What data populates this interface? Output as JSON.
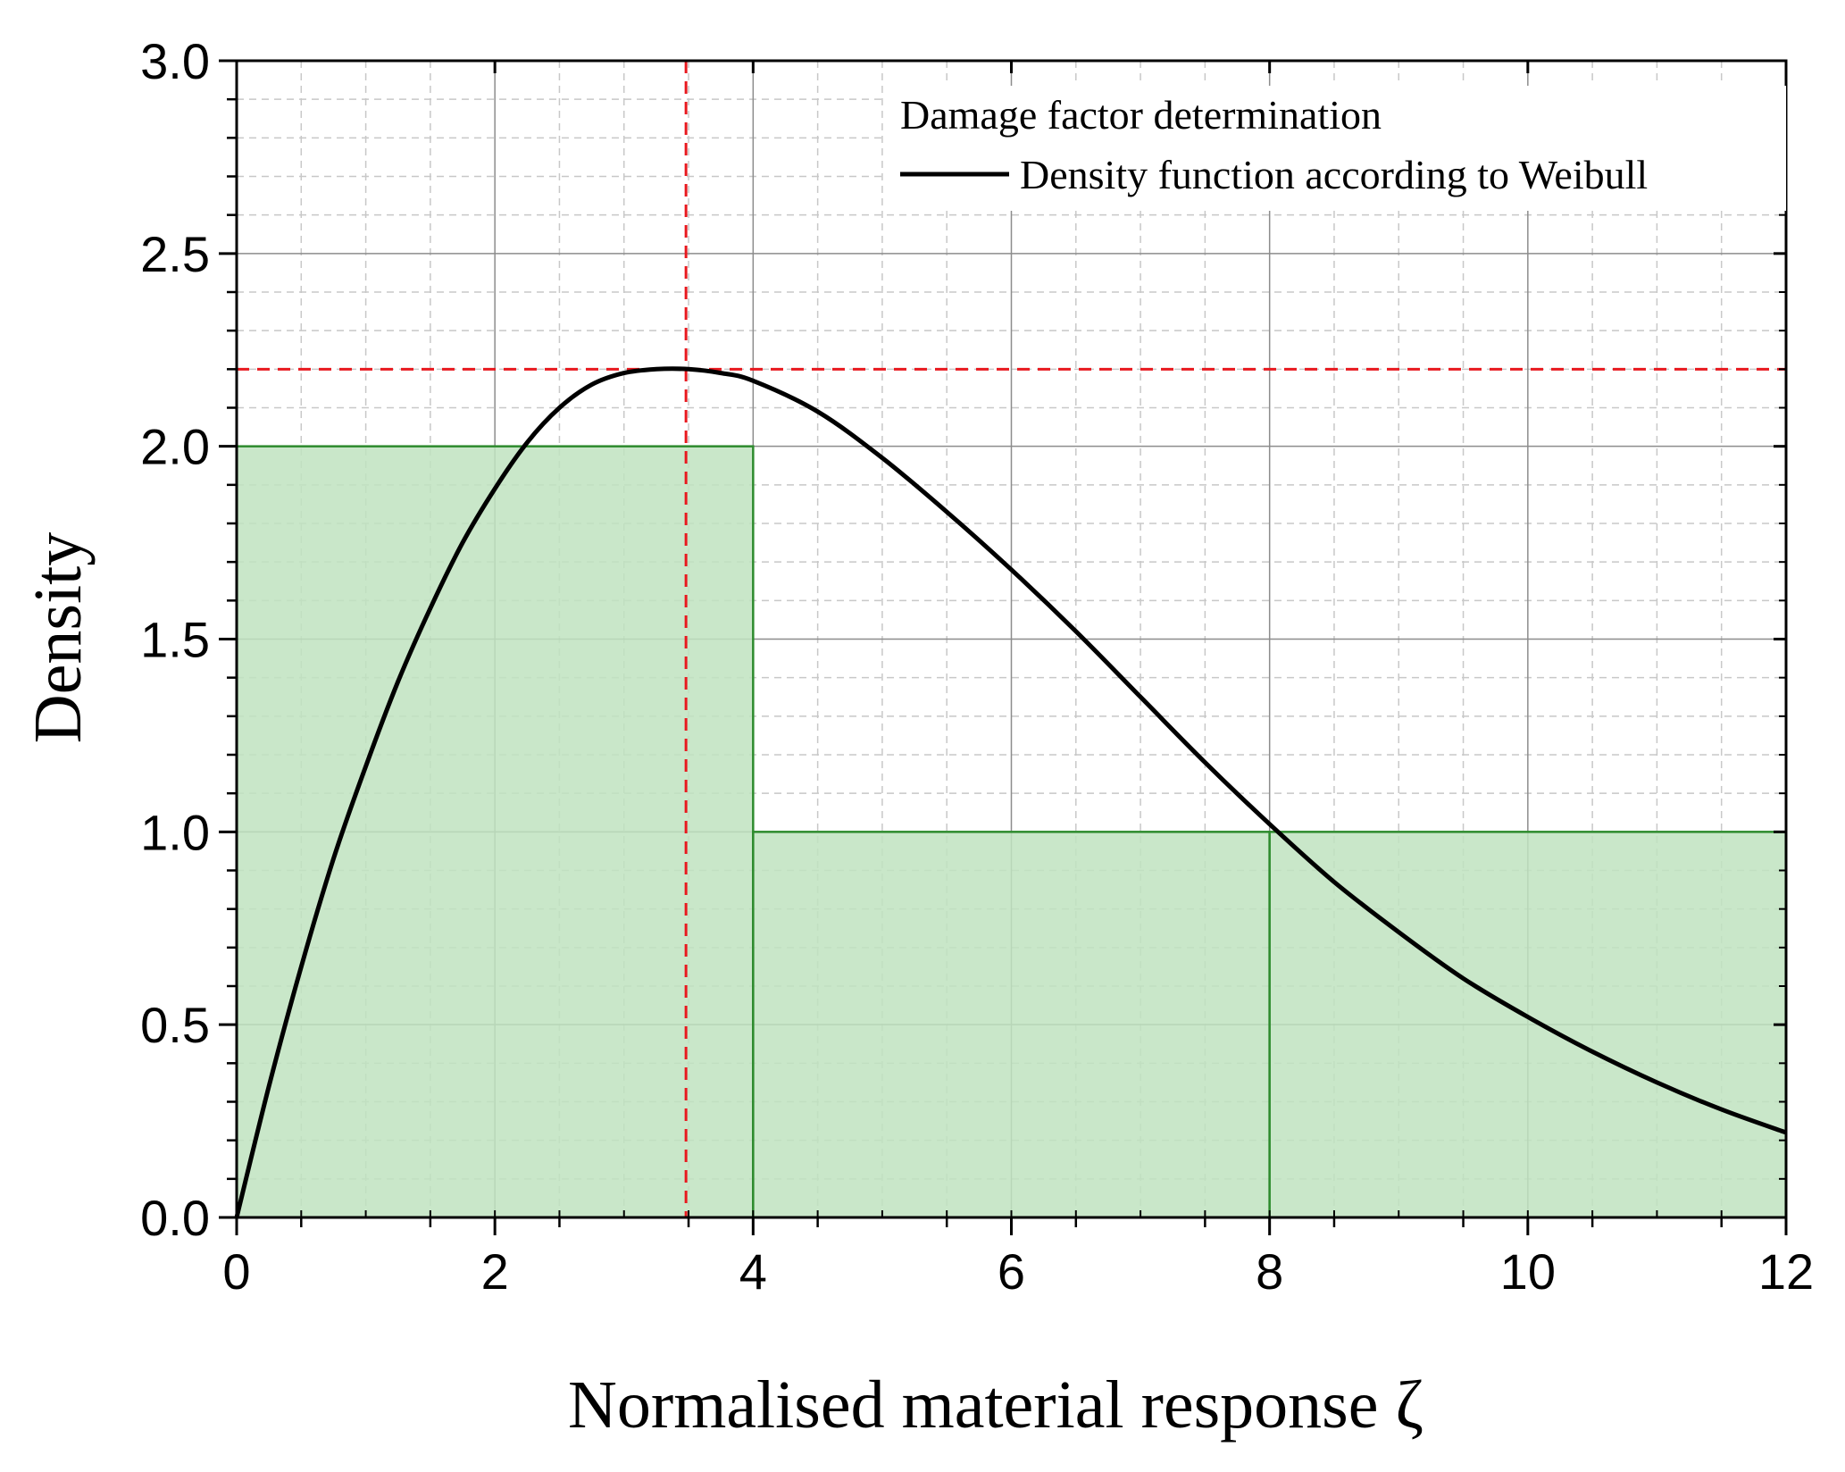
{
  "chart_data": {
    "type": "line",
    "title": "",
    "xlabel": "Normalised material response ζ",
    "ylabel": "Density",
    "xlim": [
      0,
      12
    ],
    "ylim": [
      0,
      3.0
    ],
    "x_ticks": [
      0,
      2,
      4,
      6,
      8,
      10,
      12
    ],
    "x_tick_labels": [
      "0",
      "2",
      "4",
      "6",
      "8",
      "10",
      "12"
    ],
    "y_ticks": [
      0,
      0.5,
      1.0,
      1.5,
      2.0,
      2.5,
      3.0
    ],
    "y_tick_labels": [
      "0.0",
      "0.5",
      "1.0",
      "1.5",
      "2.0",
      "2.5",
      "3.0"
    ],
    "grid": true,
    "legend": {
      "location": "top-right",
      "title": "Damage factor determination",
      "entries": [
        "Density function according to Weibull"
      ]
    },
    "series": [
      {
        "name": "Density function according to Weibull",
        "type": "line",
        "color": "#000000",
        "x": [
          0,
          0.25,
          0.5,
          0.75,
          1.0,
          1.25,
          1.5,
          1.75,
          2.0,
          2.25,
          2.5,
          2.75,
          3.0,
          3.25,
          3.5,
          3.75,
          4.0,
          4.5,
          5.0,
          5.5,
          6.0,
          6.5,
          7.0,
          7.5,
          8.0,
          8.5,
          9.0,
          9.5,
          10.0,
          10.5,
          11.0,
          11.5,
          12.0
        ],
        "y": [
          0.0,
          0.34,
          0.65,
          0.93,
          1.17,
          1.39,
          1.58,
          1.75,
          1.89,
          2.01,
          2.1,
          2.16,
          2.19,
          2.2,
          2.2,
          2.19,
          2.17,
          2.09,
          1.97,
          1.83,
          1.68,
          1.52,
          1.35,
          1.18,
          1.02,
          0.87,
          0.74,
          0.62,
          0.52,
          0.43,
          0.35,
          0.28,
          0.22
        ]
      }
    ],
    "histogram": {
      "name": "Damage factor determination",
      "fill_color": "#c0e3c0",
      "edge_color": "#2e8b2e",
      "bins": [
        {
          "x0": 0,
          "x1": 4,
          "value": 2.0
        },
        {
          "x0": 4,
          "x1": 8,
          "value": 1.0
        },
        {
          "x0": 8,
          "x1": 12,
          "value": 1.0
        }
      ]
    },
    "reference_lines": {
      "color": "#e8191f",
      "vertical_x": 3.48,
      "horizontal_y": 2.2
    }
  }
}
